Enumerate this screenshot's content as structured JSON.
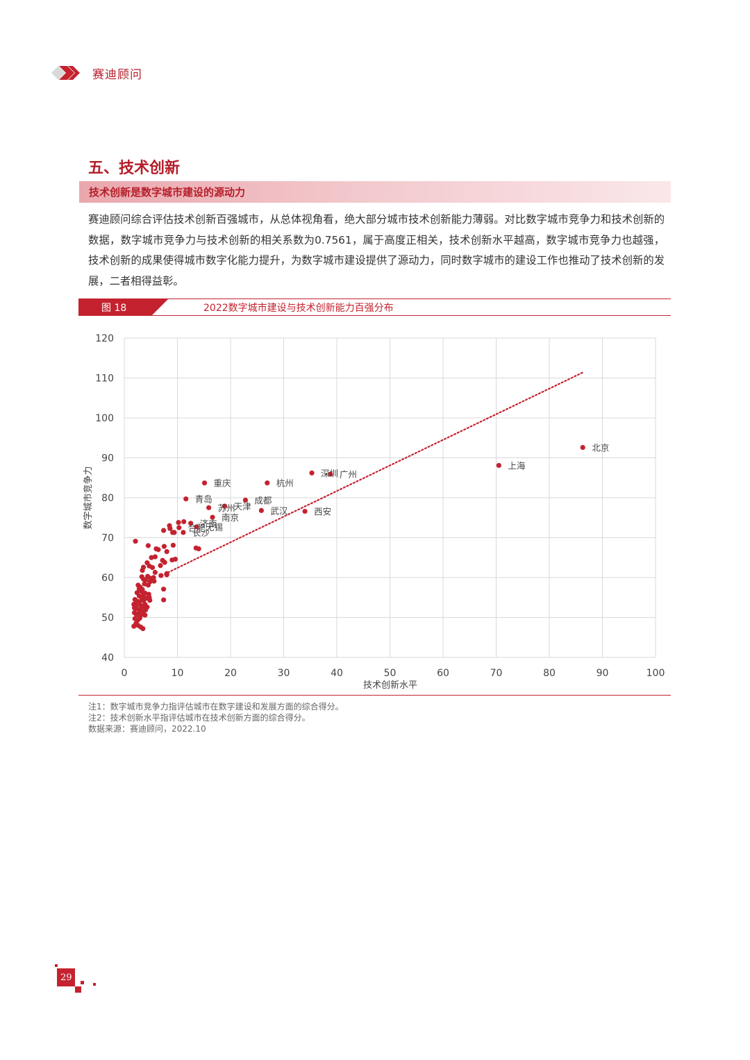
{
  "header": {
    "brand": "赛迪顾问"
  },
  "section": {
    "title": "五、技术创新",
    "subtitle": "技术创新是数字城市建设的源动力",
    "paragraph": "赛迪顾问综合评估技术创新百强城市，从总体视角看，绝大部分城市技术创新能力薄弱。对比数字城市竞争力和技术创新的数据，数字城市竞争力与技术创新的相关系数为0.7561，属于高度正相关，技术创新水平越高，数字城市竞争力也越强，技术创新的成果使得城市数字化能力提升，为数字城市建设提供了源动力，同时数字城市的建设工作也推动了技术创新的发展，二者相得益彰。"
  },
  "figure": {
    "label": "图 18",
    "title": "2022数字城市建设与技术创新能力百强分布"
  },
  "colors": {
    "accent": "#c4222f",
    "point": "#c4222f",
    "grid": "#d9d9d9"
  },
  "chart_data": {
    "type": "scatter",
    "title": "",
    "xlabel": "技术创新水平",
    "ylabel": "数字城市竞争力",
    "xlim": [
      0,
      100
    ],
    "ylim": [
      40,
      120
    ],
    "xticks": [
      0,
      10,
      20,
      30,
      40,
      50,
      60,
      70,
      80,
      90,
      100
    ],
    "yticks": [
      40,
      50,
      60,
      70,
      80,
      90,
      100,
      110,
      120
    ],
    "grid": true,
    "trendline": {
      "style": "dotted",
      "x": [
        7,
        86.5
      ],
      "y": [
        60.5,
        111.5
      ]
    },
    "labeled_points": [
      {
        "name": "北京",
        "x": 86.3,
        "y": 92.6
      },
      {
        "name": "上海",
        "x": 70.5,
        "y": 88.1
      },
      {
        "name": "深圳",
        "x": 35.3,
        "y": 86.2
      },
      {
        "name": "广州",
        "x": 38.8,
        "y": 85.9
      },
      {
        "name": "杭州",
        "x": 26.9,
        "y": 83.7
      },
      {
        "name": "重庆",
        "x": 15.1,
        "y": 83.7
      },
      {
        "name": "成都",
        "x": 22.8,
        "y": 79.4
      },
      {
        "name": "青岛",
        "x": 11.6,
        "y": 79.7
      },
      {
        "name": "天津",
        "x": 18.9,
        "y": 77.9
      },
      {
        "name": "苏州",
        "x": 15.9,
        "y": 77.5
      },
      {
        "name": "武汉",
        "x": 25.8,
        "y": 76.8
      },
      {
        "name": "西安",
        "x": 34.0,
        "y": 76.6
      },
      {
        "name": "南京",
        "x": 16.6,
        "y": 75.1
      },
      {
        "name": "济南",
        "x": 12.5,
        "y": 73.6
      },
      {
        "name": "合肥",
        "x": 10.3,
        "y": 72.5
      },
      {
        "name": "无锡",
        "x": 13.6,
        "y": 72.7
      },
      {
        "name": "长沙",
        "x": 11.1,
        "y": 71.3
      }
    ],
    "other_points": [
      [
        2.1,
        69.1
      ],
      [
        4.5,
        68.0
      ],
      [
        6.4,
        67.0
      ],
      [
        7.5,
        67.8
      ],
      [
        8.0,
        66.5
      ],
      [
        9.2,
        68.1
      ],
      [
        6.0,
        67.2
      ],
      [
        5.8,
        65.2
      ],
      [
        5.1,
        65.0
      ],
      [
        7.2,
        64.3
      ],
      [
        9.0,
        64.4
      ],
      [
        9.6,
        64.6
      ],
      [
        13.5,
        67.4
      ],
      [
        14.0,
        67.2
      ],
      [
        9.1,
        71.3
      ],
      [
        10.2,
        73.8
      ],
      [
        11.2,
        74.0
      ],
      [
        8.5,
        73.0
      ],
      [
        8.6,
        72.3
      ],
      [
        9.4,
        71.3
      ],
      [
        7.4,
        71.8
      ],
      [
        4.3,
        63.7
      ],
      [
        3.6,
        62.6
      ],
      [
        4.7,
        62.9
      ],
      [
        5.3,
        62.5
      ],
      [
        5.8,
        61.3
      ],
      [
        6.8,
        63.0
      ],
      [
        7.6,
        63.8
      ],
      [
        3.4,
        61.8
      ],
      [
        3.3,
        60.2
      ],
      [
        3.6,
        59.6
      ],
      [
        4.0,
        59.4
      ],
      [
        4.4,
        60.3
      ],
      [
        4.9,
        59.8
      ],
      [
        5.5,
        60.0
      ],
      [
        6.9,
        60.5
      ],
      [
        8.0,
        60.7
      ],
      [
        8.0,
        61.0
      ],
      [
        2.6,
        58.1
      ],
      [
        3.0,
        57.6
      ],
      [
        2.8,
        57.2
      ],
      [
        3.4,
        57.0
      ],
      [
        3.8,
        58.4
      ],
      [
        4.5,
        58.1
      ],
      [
        4.8,
        58.9
      ],
      [
        5.6,
        59.1
      ],
      [
        7.4,
        57.1
      ],
      [
        2.4,
        56.2
      ],
      [
        2.8,
        55.4
      ],
      [
        3.2,
        56.6
      ],
      [
        3.6,
        55.7
      ],
      [
        3.9,
        56.1
      ],
      [
        2.0,
        54.5
      ],
      [
        2.4,
        54.1
      ],
      [
        2.8,
        53.9
      ],
      [
        3.3,
        54.8
      ],
      [
        3.6,
        54.2
      ],
      [
        4.1,
        54.8
      ],
      [
        4.7,
        55.0
      ],
      [
        4.8,
        54.3
      ],
      [
        7.4,
        54.4
      ],
      [
        1.8,
        53.3
      ],
      [
        2.2,
        53.0
      ],
      [
        2.6,
        53.5
      ],
      [
        3.1,
        53.0
      ],
      [
        3.5,
        52.7
      ],
      [
        3.9,
        53.3
      ],
      [
        4.3,
        52.6
      ],
      [
        1.9,
        52.4
      ],
      [
        2.3,
        52.2
      ],
      [
        2.8,
        52.0
      ],
      [
        3.2,
        51.6
      ],
      [
        3.6,
        51.3
      ],
      [
        4.0,
        51.9
      ],
      [
        1.9,
        51.2
      ],
      [
        2.3,
        50.7
      ],
      [
        2.7,
        51.0
      ],
      [
        3.0,
        50.3
      ],
      [
        3.4,
        50.9
      ],
      [
        2.0,
        49.7
      ],
      [
        2.5,
        49.3
      ],
      [
        2.9,
        49.8
      ],
      [
        2.2,
        48.5
      ],
      [
        2.6,
        48.0
      ],
      [
        3.1,
        47.6
      ],
      [
        3.5,
        47.2
      ],
      [
        1.8,
        47.8
      ],
      [
        4.6,
        55.8
      ],
      [
        3.9,
        50.6
      ]
    ]
  },
  "notes": [
    "注1：数字城市竞争力指评估城市在数字建设和发展方面的综合得分。",
    "注2：技术创新水平指评估城市在技术创新方面的综合得分。",
    "数据来源：赛迪顾问，2022.10"
  ],
  "footer": {
    "page_number": "29"
  }
}
